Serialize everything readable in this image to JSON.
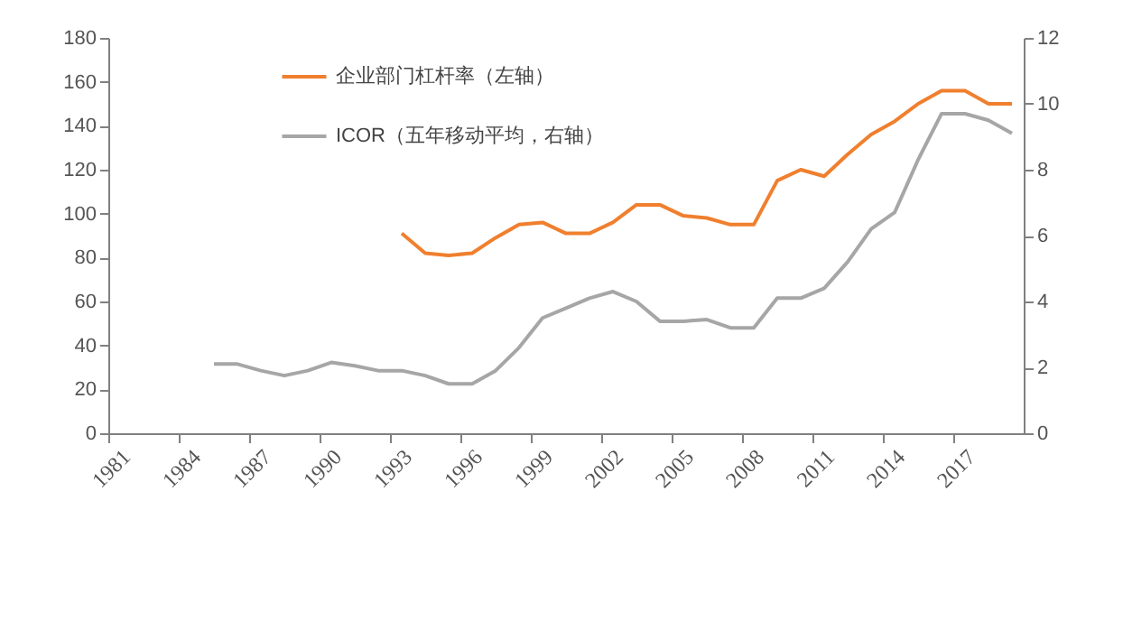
{
  "chart_data": {
    "type": "line",
    "categories": [
      "1981",
      null,
      null,
      "1984",
      null,
      null,
      "1987",
      null,
      null,
      "1990",
      null,
      null,
      "1993",
      null,
      null,
      "1996",
      null,
      null,
      "1999",
      null,
      null,
      "2002",
      null,
      null,
      "2005",
      null,
      null,
      "2008",
      null,
      null,
      "2011",
      null,
      null,
      "2014",
      null,
      null,
      "2017",
      null,
      null
    ],
    "series": [
      {
        "name": "企业部门杠杆率（左轴）",
        "color": "#f07f2e",
        "values": [
          null,
          null,
          null,
          null,
          null,
          null,
          null,
          null,
          null,
          null,
          null,
          null,
          91,
          82,
          81,
          82,
          89,
          95,
          96,
          91,
          91,
          96,
          104,
          104,
          99,
          98,
          95,
          95,
          115,
          120,
          117,
          127,
          136,
          142,
          150,
          156,
          156,
          150,
          150
        ]
      },
      {
        "name": "ICOR（五年移动平均，右轴）",
        "color": "#a6a6a6",
        "axis": "y2",
        "values": [
          null,
          null,
          null,
          null,
          2.1,
          2.1,
          1.9,
          1.75,
          1.9,
          2.15,
          2.05,
          1.9,
          1.9,
          1.75,
          1.5,
          1.5,
          1.9,
          2.6,
          3.5,
          3.8,
          4.1,
          4.3,
          4.0,
          3.4,
          3.4,
          3.45,
          3.2,
          3.2,
          4.1,
          4.1,
          4.4,
          5.2,
          6.2,
          6.7,
          8.3,
          9.7,
          9.7,
          9.5,
          9.1
        ]
      }
    ],
    "ylim": [
      0,
      180
    ],
    "yticks": [
      0,
      20,
      40,
      60,
      80,
      100,
      120,
      140,
      160,
      180
    ],
    "y2lim": [
      0,
      12
    ],
    "y2ticks": [
      0,
      2,
      4,
      6,
      8,
      10,
      12
    ],
    "legend": "top",
    "grid": false,
    "marker": "none",
    "line_style": "solid"
  }
}
